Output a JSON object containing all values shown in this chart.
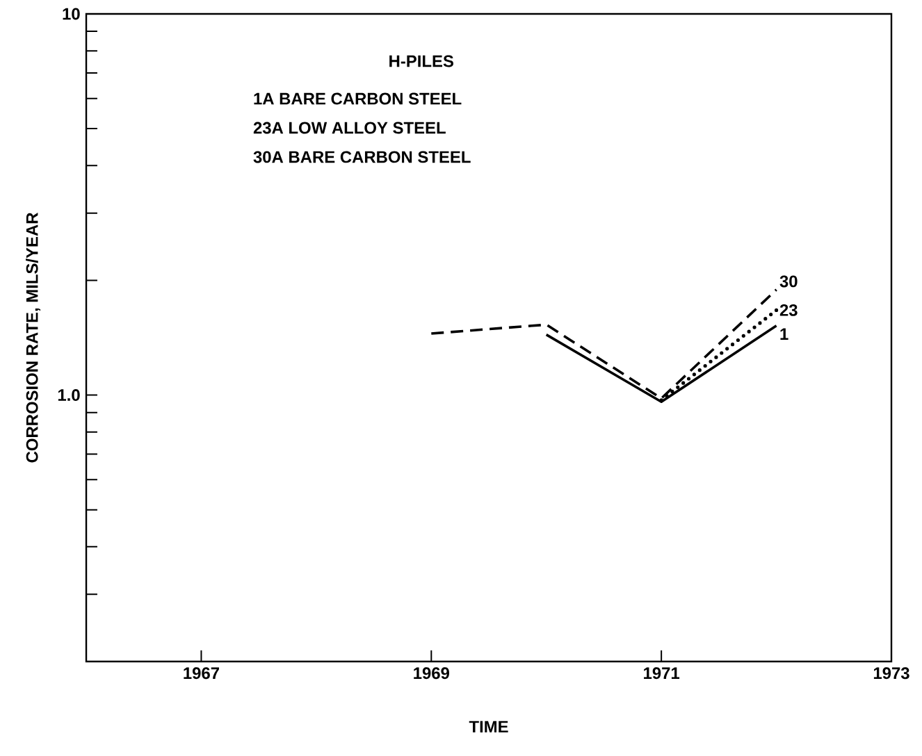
{
  "chart_data": {
    "type": "line",
    "xlabel": "TIME",
    "ylabel": "CORROSION RATE, MILS/YEAR",
    "annotations": [
      "H-PILES",
      "1A  BARE CARBON STEEL",
      "23A  LOW ALLOY STEEL",
      "30A  BARE CARBON STEEL"
    ],
    "log": "y",
    "xlim": [
      1966,
      1973
    ],
    "ylim": [
      0.2,
      10
    ],
    "xticks": [
      1967,
      1969,
      1971,
      1973
    ],
    "yticks": [
      {
        "value": 0.3,
        "label": null
      },
      {
        "value": 0.4,
        "label": null
      },
      {
        "value": 0.5,
        "label": null
      },
      {
        "value": 0.6,
        "label": null
      },
      {
        "value": 0.7,
        "label": null
      },
      {
        "value": 0.8,
        "label": null
      },
      {
        "value": 0.9,
        "label": null
      },
      {
        "value": 1,
        "label": "1.0"
      },
      {
        "value": 2,
        "label": null
      },
      {
        "value": 3,
        "label": null
      },
      {
        "value": 4,
        "label": null
      },
      {
        "value": 5,
        "label": null
      },
      {
        "value": 6,
        "label": null
      },
      {
        "value": 7,
        "label": null
      },
      {
        "value": 8,
        "label": null
      },
      {
        "value": 9,
        "label": null
      },
      10
    ],
    "grid": false,
    "marker": "none",
    "series": [
      {
        "name": "1",
        "color": "#000000",
        "line_style": "solid",
        "x": [
          1970,
          1971,
          1972
        ],
        "values": [
          1.44,
          0.96,
          1.52
        ]
      },
      {
        "name": "23",
        "color": "#000000",
        "line_style": "dotted",
        "x": [
          1971,
          1972
        ],
        "values": [
          0.97,
          1.67
        ]
      },
      {
        "name": "30",
        "color": "#000000",
        "line_style": "dashed",
        "x": [
          1969,
          1970,
          1971,
          1972
        ],
        "values": [
          1.45,
          1.53,
          0.98,
          1.89
        ]
      }
    ]
  }
}
